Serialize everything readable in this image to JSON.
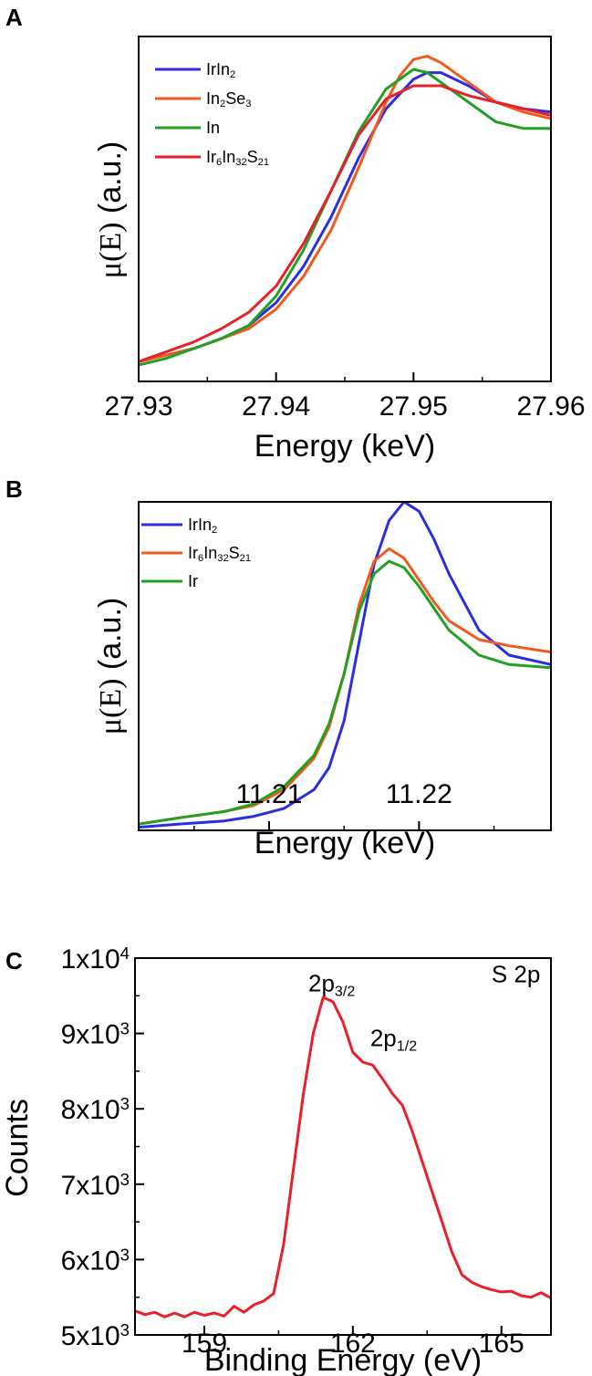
{
  "chart_data": [
    {
      "panel": "A",
      "type": "line",
      "xlabel": "Energy (keV)",
      "ylabel": {
        "base": "μ(E)",
        "unit": " (a.u.)"
      },
      "xlim": [
        27.93,
        27.96
      ],
      "ylim": [
        0.0,
        1.05
      ],
      "xticks": [
        27.93,
        27.94,
        27.95,
        27.96
      ],
      "xtick_labels": [
        "27.93",
        "27.94",
        "27.95",
        "27.96"
      ],
      "yticks_visible": false,
      "legend_placement": "top-left",
      "series": [
        {
          "name": [
            [
              "IrIn",
              ""
            ],
            [
              "2",
              "sub"
            ]
          ],
          "color": "#2a2ee0",
          "x": [
            27.93,
            27.932,
            27.934,
            27.936,
            27.938,
            27.94,
            27.942,
            27.944,
            27.946,
            27.948,
            27.95,
            27.951,
            27.952,
            27.954,
            27.956,
            27.958,
            27.96
          ],
          "y": [
            0.06,
            0.08,
            0.1,
            0.13,
            0.17,
            0.24,
            0.35,
            0.5,
            0.68,
            0.83,
            0.92,
            0.94,
            0.94,
            0.9,
            0.85,
            0.83,
            0.82
          ]
        },
        {
          "name": [
            [
              "In",
              ""
            ],
            [
              "2",
              "sub"
            ],
            [
              "Se",
              ""
            ],
            [
              "3",
              "sub"
            ]
          ],
          "color": "#f05a1e",
          "x": [
            27.93,
            27.932,
            27.934,
            27.936,
            27.938,
            27.94,
            27.942,
            27.944,
            27.946,
            27.948,
            27.949,
            27.95,
            27.951,
            27.952,
            27.954,
            27.956,
            27.958,
            27.96
          ],
          "y": [
            0.06,
            0.08,
            0.1,
            0.13,
            0.16,
            0.22,
            0.32,
            0.46,
            0.65,
            0.85,
            0.93,
            0.98,
            0.99,
            0.97,
            0.91,
            0.85,
            0.82,
            0.8
          ]
        },
        {
          "name": [
            [
              "In",
              ""
            ]
          ],
          "color": "#22a022",
          "x": [
            27.93,
            27.932,
            27.934,
            27.936,
            27.938,
            27.94,
            27.942,
            27.944,
            27.946,
            27.948,
            27.95,
            27.951,
            27.952,
            27.954,
            27.956,
            27.958,
            27.96
          ],
          "y": [
            0.05,
            0.07,
            0.1,
            0.13,
            0.17,
            0.26,
            0.4,
            0.58,
            0.76,
            0.89,
            0.95,
            0.94,
            0.91,
            0.85,
            0.79,
            0.77,
            0.77
          ]
        },
        {
          "name": [
            [
              "Ir",
              ""
            ],
            [
              "6",
              "sub"
            ],
            [
              "In",
              ""
            ],
            [
              "32",
              "sub"
            ],
            [
              "S",
              ""
            ],
            [
              "21",
              "sub"
            ]
          ],
          "color": "#e8202a",
          "x": [
            27.93,
            27.932,
            27.934,
            27.936,
            27.938,
            27.94,
            27.942,
            27.944,
            27.946,
            27.948,
            27.95,
            27.952,
            27.954,
            27.956,
            27.958,
            27.96
          ],
          "y": [
            0.06,
            0.09,
            0.12,
            0.16,
            0.21,
            0.29,
            0.42,
            0.58,
            0.75,
            0.86,
            0.9,
            0.9,
            0.87,
            0.85,
            0.83,
            0.81
          ]
        }
      ]
    },
    {
      "panel": "B",
      "type": "line",
      "xlabel": "Energy (keV)",
      "ylabel": {
        "base": "μ(E)",
        "unit": " (a.u.)"
      },
      "xlim": [
        11.2013,
        11.2288
      ],
      "ylim": [
        0.0,
        1.05
      ],
      "xticks": [
        11.21,
        11.22
      ],
      "xtick_labels": [
        "11.21",
        "11.22"
      ],
      "yticks_visible": false,
      "legend_placement": "top-left",
      "series": [
        {
          "name": [
            [
              "IrIn",
              ""
            ],
            [
              "2",
              "sub"
            ]
          ],
          "color": "#2a2ee0",
          "x": [
            11.2013,
            11.204,
            11.207,
            11.209,
            11.211,
            11.213,
            11.214,
            11.215,
            11.216,
            11.217,
            11.218,
            11.219,
            11.22,
            11.221,
            11.222,
            11.224,
            11.226,
            11.2288
          ],
          "y": [
            0.01,
            0.02,
            0.03,
            0.045,
            0.07,
            0.13,
            0.2,
            0.35,
            0.6,
            0.85,
            0.99,
            1.05,
            1.02,
            0.93,
            0.82,
            0.64,
            0.56,
            0.53
          ]
        },
        {
          "name": [
            [
              "Ir",
              ""
            ],
            [
              "6",
              "sub"
            ],
            [
              "In",
              ""
            ],
            [
              "32",
              "sub"
            ],
            [
              "S",
              ""
            ],
            [
              "21",
              "sub"
            ]
          ],
          "color": "#f05a1e",
          "x": [
            11.2013,
            11.204,
            11.207,
            11.209,
            11.211,
            11.213,
            11.214,
            11.215,
            11.216,
            11.217,
            11.218,
            11.219,
            11.22,
            11.221,
            11.222,
            11.224,
            11.226,
            11.2288
          ],
          "y": [
            0.02,
            0.04,
            0.06,
            0.08,
            0.13,
            0.23,
            0.33,
            0.5,
            0.72,
            0.86,
            0.9,
            0.87,
            0.8,
            0.73,
            0.67,
            0.61,
            0.59,
            0.57
          ]
        },
        {
          "name": [
            [
              "Ir",
              ""
            ]
          ],
          "color": "#22a022",
          "x": [
            11.2013,
            11.204,
            11.207,
            11.209,
            11.211,
            11.213,
            11.214,
            11.215,
            11.216,
            11.217,
            11.218,
            11.219,
            11.22,
            11.221,
            11.222,
            11.224,
            11.226,
            11.2288
          ],
          "y": [
            0.02,
            0.04,
            0.06,
            0.085,
            0.14,
            0.24,
            0.34,
            0.5,
            0.7,
            0.82,
            0.86,
            0.84,
            0.78,
            0.71,
            0.64,
            0.56,
            0.53,
            0.52
          ]
        }
      ]
    },
    {
      "panel": "C",
      "type": "line",
      "xlabel": "Binding Energy (eV)",
      "ylabel": "Counts",
      "xlim": [
        157.6,
        166.0
      ],
      "ylim": [
        5000,
        10000
      ],
      "xticks": [
        159,
        162,
        165
      ],
      "xtick_labels": [
        "159",
        "162",
        "165"
      ],
      "yticks": [
        5000,
        6000,
        7000,
        8000,
        9000,
        10000
      ],
      "ytick_labels": [
        [
          [
            "5x10",
            ""
          ],
          [
            "3",
            "sup"
          ]
        ],
        [
          [
            "6x10",
            ""
          ],
          [
            "3",
            "sup"
          ]
        ],
        [
          [
            "7x10",
            ""
          ],
          [
            "3",
            "sup"
          ]
        ],
        [
          [
            "8x10",
            ""
          ],
          [
            "3",
            "sup"
          ]
        ],
        [
          [
            "9x10",
            ""
          ],
          [
            "3",
            "sup"
          ]
        ],
        [
          [
            "1x10",
            ""
          ],
          [
            "4",
            "sup"
          ]
        ]
      ],
      "annotations": [
        {
          "label": [
            [
              "2p",
              ""
            ],
            [
              "3/2",
              "sub"
            ]
          ],
          "x": 161.1,
          "y": 9560
        },
        {
          "label": [
            [
              "2p",
              ""
            ],
            [
              "1/2",
              "sub"
            ]
          ],
          "x": 162.35,
          "y": 8830
        },
        {
          "label": [
            [
              "S 2p",
              ""
            ]
          ],
          "x": 164.8,
          "y": 9680
        }
      ],
      "series": [
        {
          "name": "",
          "color": "#e8202a",
          "x": [
            157.6,
            157.8,
            158.0,
            158.2,
            158.4,
            158.6,
            158.8,
            159.0,
            159.2,
            159.4,
            159.6,
            159.8,
            160.0,
            160.2,
            160.4,
            160.6,
            160.8,
            161.0,
            161.2,
            161.4,
            161.6,
            161.8,
            162.0,
            162.2,
            162.4,
            162.6,
            162.8,
            163.0,
            163.2,
            163.4,
            163.6,
            163.8,
            164.0,
            164.2,
            164.4,
            164.6,
            164.8,
            165.0,
            165.2,
            165.4,
            165.6,
            165.8,
            166.0
          ],
          "y": [
            5320,
            5270,
            5300,
            5240,
            5290,
            5240,
            5300,
            5260,
            5290,
            5250,
            5380,
            5300,
            5400,
            5450,
            5550,
            6200,
            7200,
            8200,
            9000,
            9480,
            9420,
            9150,
            8750,
            8620,
            8580,
            8400,
            8200,
            8050,
            7700,
            7300,
            6900,
            6500,
            6100,
            5800,
            5700,
            5640,
            5600,
            5570,
            5580,
            5520,
            5500,
            5560,
            5490
          ]
        }
      ]
    }
  ]
}
